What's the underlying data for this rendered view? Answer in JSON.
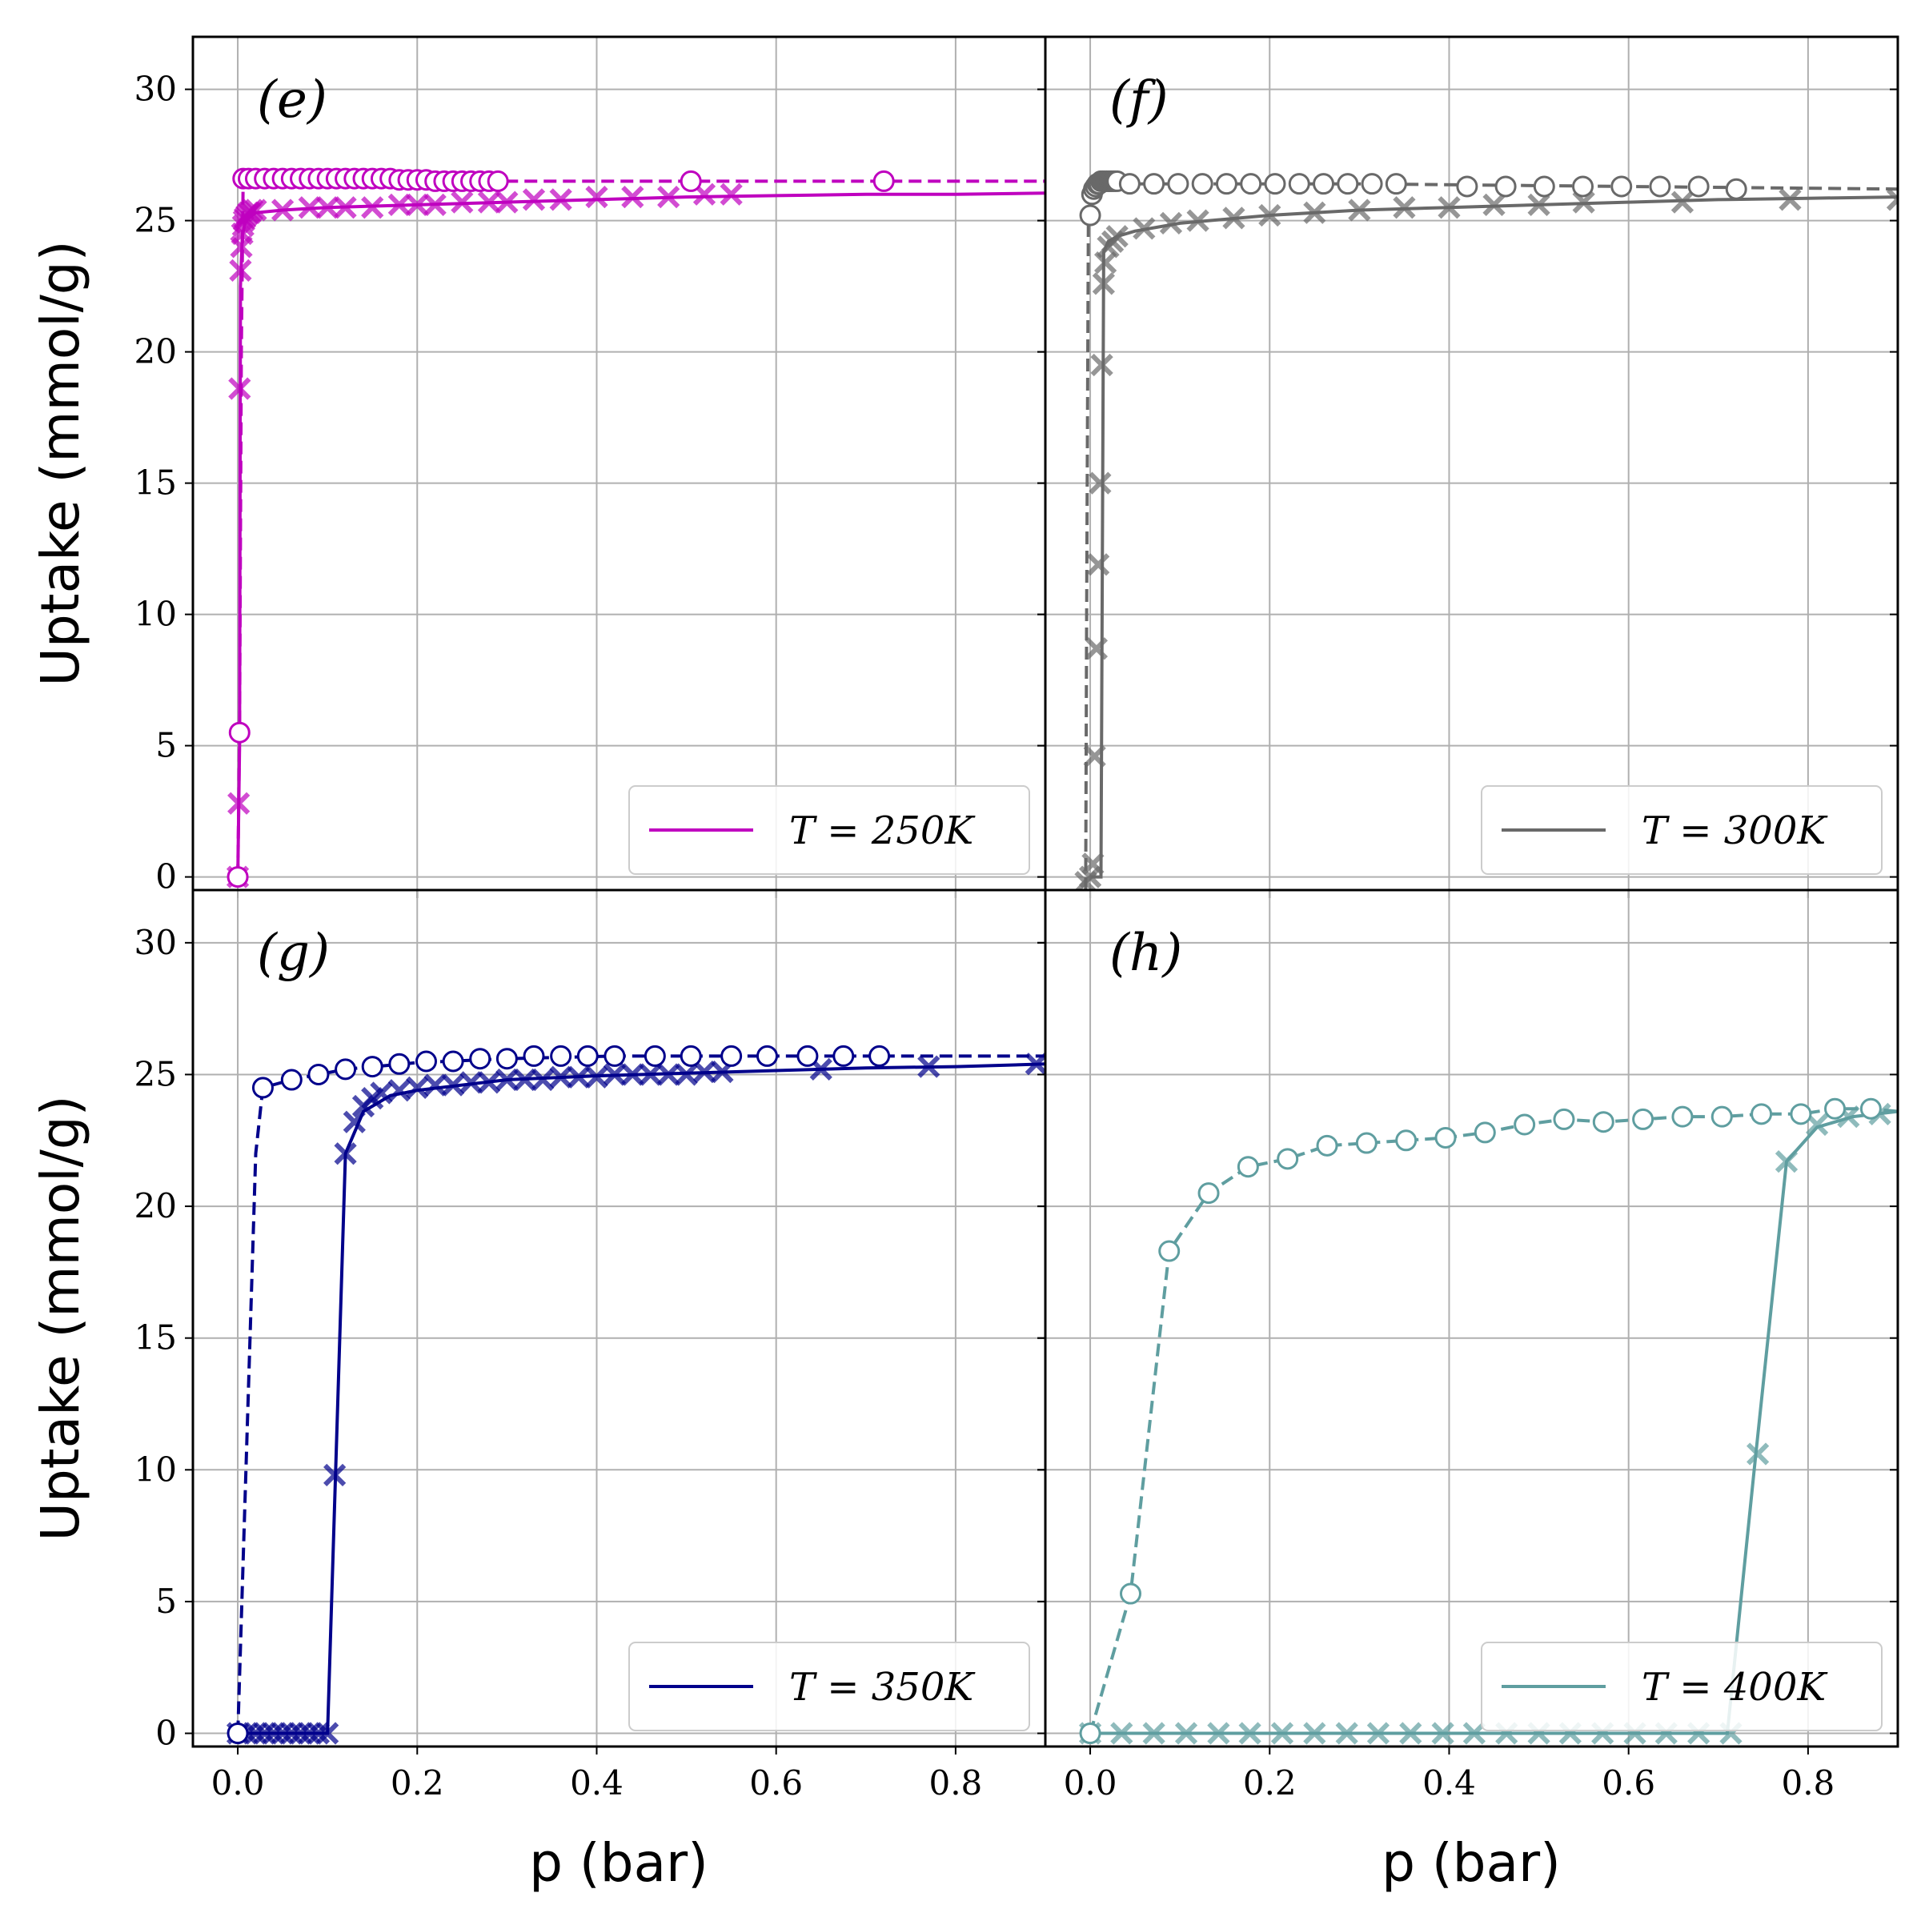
{
  "chart_data": [
    {
      "panel": "(e)",
      "type": "line",
      "temperature_label": "T = 250K",
      "color": "#bf00bf",
      "xlim": [
        -0.05,
        0.9
      ],
      "ylim": [
        -0.5,
        32
      ],
      "xlabel": "",
      "ylabel": "Uptake (mmol/g)",
      "adsorption": {
        "x": [
          0.0,
          0.001,
          0.002,
          0.003,
          0.004,
          0.005,
          0.006,
          0.007,
          0.008,
          0.01,
          0.012,
          0.014,
          0.016,
          0.02,
          0.05,
          0.08,
          0.1,
          0.12,
          0.15,
          0.18,
          0.2,
          0.22,
          0.25,
          0.28,
          0.3,
          0.33,
          0.36,
          0.4,
          0.44,
          0.48,
          0.52,
          0.55
        ],
        "y": [
          0.0,
          2.8,
          18.6,
          23.1,
          24.0,
          24.5,
          24.8,
          25.0,
          25.1,
          25.2,
          25.3,
          25.3,
          25.4,
          25.4,
          25.4,
          25.5,
          25.5,
          25.5,
          25.5,
          25.6,
          25.6,
          25.6,
          25.7,
          25.7,
          25.7,
          25.8,
          25.8,
          25.9,
          25.9,
          25.9,
          26.0,
          26.0
        ]
      },
      "adsorption_fit": {
        "x": [
          0.0,
          0.002,
          0.003,
          0.005,
          0.008,
          0.012,
          0.02,
          0.05,
          0.1,
          0.2,
          0.3,
          0.4,
          0.5,
          0.6,
          0.7,
          0.8,
          0.9
        ],
        "y": [
          0.0,
          5.0,
          22.5,
          24.4,
          24.9,
          25.1,
          25.3,
          25.4,
          25.5,
          25.6,
          25.7,
          25.8,
          25.9,
          25.95,
          26.0,
          26.0,
          26.05
        ]
      },
      "desorption": {
        "x": [
          0.0,
          0.002,
          0.006,
          0.012,
          0.02,
          0.03,
          0.04,
          0.05,
          0.06,
          0.07,
          0.08,
          0.09,
          0.1,
          0.11,
          0.12,
          0.13,
          0.14,
          0.15,
          0.16,
          0.17,
          0.18,
          0.19,
          0.2,
          0.21,
          0.22,
          0.23,
          0.24,
          0.25,
          0.26,
          0.27,
          0.28,
          0.29,
          0.505,
          0.72
        ],
        "y": [
          0.0,
          5.5,
          26.6,
          26.6,
          26.6,
          26.6,
          26.6,
          26.6,
          26.6,
          26.6,
          26.6,
          26.6,
          26.6,
          26.6,
          26.6,
          26.6,
          26.6,
          26.6,
          26.6,
          26.6,
          26.55,
          26.55,
          26.55,
          26.55,
          26.5,
          26.5,
          26.5,
          26.5,
          26.5,
          26.5,
          26.5,
          26.5,
          26.5,
          26.5
        ]
      },
      "desorption_fit": {
        "x": [
          0.0,
          0.002,
          0.004,
          0.006,
          0.1,
          0.3,
          0.5,
          0.72,
          0.9
        ],
        "y": [
          0.0,
          5.5,
          20.0,
          26.6,
          26.6,
          26.5,
          26.5,
          26.5,
          26.5
        ]
      }
    },
    {
      "panel": "(f)",
      "type": "line",
      "temperature_label": "T = 300K",
      "color": "#696969",
      "xlim": [
        -0.05,
        0.9
      ],
      "ylim": [
        -0.5,
        32
      ],
      "xlabel": "",
      "ylabel": "",
      "adsorption": {
        "x": [
          -0.005,
          0.0,
          0.003,
          0.005,
          0.007,
          0.009,
          0.011,
          0.013,
          0.015,
          0.017,
          0.02,
          0.025,
          0.03,
          0.06,
          0.09,
          0.12,
          0.16,
          0.2,
          0.25,
          0.3,
          0.35,
          0.4,
          0.45,
          0.5,
          0.55,
          0.66,
          0.78,
          0.9
        ],
        "y": [
          -0.2,
          0.0,
          0.5,
          4.6,
          8.7,
          11.9,
          15.0,
          19.5,
          22.6,
          23.4,
          24.0,
          24.2,
          24.4,
          24.7,
          24.9,
          25.0,
          25.1,
          25.2,
          25.3,
          25.4,
          25.5,
          25.5,
          25.6,
          25.6,
          25.7,
          25.7,
          25.8,
          25.8
        ]
      },
      "adsorption_fit": {
        "x": [
          0.0,
          0.012,
          0.015,
          0.02,
          0.03,
          0.05,
          0.1,
          0.2,
          0.3,
          0.4,
          0.5,
          0.6,
          0.7,
          0.8,
          0.9
        ],
        "y": [
          0.0,
          0.0,
          23.8,
          24.2,
          24.4,
          24.6,
          24.9,
          25.2,
          25.4,
          25.5,
          25.6,
          25.7,
          25.8,
          25.85,
          25.9
        ]
      },
      "desorption": {
        "x": [
          0.0,
          0.002,
          0.004,
          0.006,
          0.008,
          0.01,
          0.012,
          0.014,
          0.016,
          0.018,
          0.02,
          0.022,
          0.024,
          0.026,
          0.028,
          0.03,
          0.044,
          0.071,
          0.098,
          0.125,
          0.152,
          0.179,
          0.206,
          0.233,
          0.26,
          0.287,
          0.314,
          0.341,
          0.42,
          0.463,
          0.506,
          0.549,
          0.592,
          0.635,
          0.678,
          0.72
        ],
        "y": [
          25.2,
          26.0,
          26.2,
          26.3,
          26.4,
          26.4,
          26.5,
          26.5,
          26.5,
          26.5,
          26.5,
          26.5,
          26.5,
          26.5,
          26.5,
          26.5,
          26.4,
          26.4,
          26.4,
          26.4,
          26.4,
          26.4,
          26.4,
          26.4,
          26.4,
          26.4,
          26.4,
          26.4,
          26.3,
          26.3,
          26.3,
          26.3,
          26.3,
          26.3,
          26.3,
          26.2
        ]
      },
      "desorption_fit": {
        "x": [
          -0.005,
          -0.004,
          -0.002,
          0.0,
          0.005,
          0.05,
          0.3,
          0.6,
          0.9
        ],
        "y": [
          -0.5,
          10.0,
          25.2,
          26.0,
          26.4,
          26.4,
          26.4,
          26.3,
          26.2
        ]
      }
    },
    {
      "panel": "(g)",
      "type": "line",
      "temperature_label": "T = 350K",
      "color": "#00008b",
      "xlim": [
        -0.05,
        0.9
      ],
      "ylim": [
        -0.5,
        32
      ],
      "xlabel": "p (bar)",
      "ylabel": "Uptake (mmol/g)",
      "adsorption": {
        "x": [
          0.0,
          0.01,
          0.02,
          0.03,
          0.04,
          0.05,
          0.06,
          0.07,
          0.08,
          0.09,
          0.1,
          0.108,
          0.12,
          0.13,
          0.14,
          0.15,
          0.16,
          0.18,
          0.2,
          0.22,
          0.24,
          0.26,
          0.28,
          0.3,
          0.32,
          0.34,
          0.36,
          0.38,
          0.4,
          0.42,
          0.44,
          0.46,
          0.48,
          0.5,
          0.52,
          0.54,
          0.65,
          0.77,
          0.89
        ],
        "y": [
          0.0,
          0.0,
          0.0,
          0.0,
          0.0,
          0.0,
          0.0,
          0.0,
          0.0,
          0.0,
          0.0,
          9.8,
          22.0,
          23.2,
          23.8,
          24.1,
          24.3,
          24.4,
          24.5,
          24.6,
          24.6,
          24.7,
          24.7,
          24.8,
          24.8,
          24.8,
          24.9,
          24.9,
          24.9,
          25.0,
          25.0,
          25.0,
          25.0,
          25.0,
          25.1,
          25.1,
          25.2,
          25.3,
          25.4
        ]
      },
      "adsorption_fit": {
        "x": [
          0.0,
          0.1,
          0.12,
          0.14,
          0.17,
          0.2,
          0.3,
          0.4,
          0.5,
          0.6,
          0.7,
          0.8,
          0.9
        ],
        "y": [
          0.0,
          0.0,
          22.0,
          23.6,
          24.2,
          24.4,
          24.8,
          24.95,
          25.05,
          25.15,
          25.25,
          25.3,
          25.4
        ]
      },
      "desorption": {
        "x": [
          0.0,
          0.028,
          0.06,
          0.09,
          0.12,
          0.15,
          0.18,
          0.21,
          0.24,
          0.27,
          0.3,
          0.33,
          0.36,
          0.39,
          0.42,
          0.465,
          0.505,
          0.55,
          0.59,
          0.635,
          0.675,
          0.715
        ],
        "y": [
          0.0,
          24.5,
          24.8,
          25.0,
          25.2,
          25.3,
          25.4,
          25.5,
          25.5,
          25.6,
          25.6,
          25.7,
          25.7,
          25.7,
          25.7,
          25.7,
          25.7,
          25.7,
          25.7,
          25.7,
          25.7,
          25.7
        ]
      },
      "desorption_fit": {
        "x": [
          0.0,
          0.0,
          0.02,
          0.028,
          0.06,
          0.12,
          0.2,
          0.3,
          0.42,
          0.6,
          0.75,
          0.9
        ],
        "y": [
          0.0,
          0.0,
          22.0,
          24.5,
          24.8,
          25.2,
          25.45,
          25.6,
          25.7,
          25.7,
          25.7,
          25.7
        ]
      }
    },
    {
      "panel": "(h)",
      "type": "line",
      "temperature_label": "T = 400K",
      "color": "#5f9ea0",
      "xlim": [
        -0.05,
        0.9
      ],
      "ylim": [
        -0.5,
        32
      ],
      "xlabel": "p (bar)",
      "ylabel": "",
      "adsorption": {
        "x": [
          0.0,
          0.035,
          0.071,
          0.107,
          0.143,
          0.178,
          0.214,
          0.25,
          0.286,
          0.321,
          0.357,
          0.393,
          0.428,
          0.464,
          0.5,
          0.535,
          0.571,
          0.607,
          0.642,
          0.678,
          0.714,
          0.744,
          0.776,
          0.81,
          0.845,
          0.88
        ],
        "y": [
          0.0,
          0.0,
          0.0,
          0.0,
          0.0,
          0.0,
          0.0,
          0.0,
          0.0,
          0.0,
          0.0,
          0.0,
          0.0,
          0.0,
          0.0,
          0.0,
          0.0,
          0.0,
          0.0,
          0.0,
          0.0,
          10.6,
          21.7,
          23.1,
          23.4,
          23.5
        ]
      },
      "adsorption_fit": {
        "x": [
          0.0,
          0.71,
          0.74,
          0.776,
          0.81,
          0.85,
          0.9
        ],
        "y": [
          0.0,
          0.0,
          10.0,
          21.7,
          23.0,
          23.4,
          23.6
        ]
      },
      "desorption": {
        "x": [
          0.0,
          0.045,
          0.088,
          0.132,
          0.176,
          0.22,
          0.264,
          0.308,
          0.352,
          0.396,
          0.44,
          0.484,
          0.528,
          0.572,
          0.616,
          0.66,
          0.704,
          0.748,
          0.792,
          0.83,
          0.87
        ],
        "y": [
          0.0,
          5.3,
          18.3,
          20.5,
          21.5,
          21.8,
          22.3,
          22.4,
          22.5,
          22.6,
          22.8,
          23.1,
          23.3,
          23.2,
          23.3,
          23.4,
          23.4,
          23.5,
          23.5,
          23.7,
          23.7
        ]
      },
      "desorption_fit": {
        "x": [
          0.0,
          0.045,
          0.088,
          0.132,
          0.176,
          0.22,
          0.264,
          0.308,
          0.352,
          0.396,
          0.44,
          0.484,
          0.528,
          0.572,
          0.616,
          0.66,
          0.704,
          0.748,
          0.792,
          0.83,
          0.87,
          0.9
        ],
        "y": [
          0.0,
          5.3,
          18.3,
          20.5,
          21.5,
          21.8,
          22.3,
          22.4,
          22.5,
          22.6,
          22.8,
          23.1,
          23.3,
          23.2,
          23.3,
          23.4,
          23.4,
          23.5,
          23.5,
          23.7,
          23.7,
          23.6
        ]
      }
    }
  ],
  "axes": {
    "x_ticks": [
      "0.0",
      "0.2",
      "0.4",
      "0.6",
      "0.8"
    ],
    "x_tick_values": [
      0.0,
      0.2,
      0.4,
      0.6,
      0.8
    ],
    "y_ticks": [
      "0",
      "5",
      "10",
      "15",
      "20",
      "25",
      "30"
    ],
    "y_tick_values": [
      0,
      5,
      10,
      15,
      20,
      25,
      30
    ],
    "xlabel": "p (bar)",
    "ylabel": "Uptake (mmol/g)"
  }
}
